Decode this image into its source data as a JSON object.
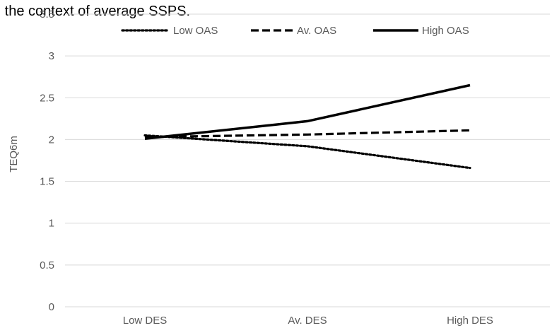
{
  "chart_data": {
    "type": "line",
    "title": "n the context of average SSPS.",
    "xlabel": "",
    "ylabel": "TEQ6m",
    "categories": [
      "Low DES",
      "Av. DES",
      "High DES"
    ],
    "ylim": [
      0,
      3.5
    ],
    "yticks": [
      0,
      0.5,
      1,
      1.5,
      2,
      2.5,
      3,
      3.5
    ],
    "ytick_labels": [
      "0",
      "0.5",
      "1",
      "1.5",
      "2",
      "2.5",
      "3",
      "3.5"
    ],
    "grid": true,
    "legend_position": "top",
    "series": [
      {
        "name": "Low OAS",
        "values": [
          2.05,
          1.92,
          1.66
        ],
        "style": "dotted",
        "color": "#000000"
      },
      {
        "name": "Av. OAS",
        "values": [
          2.03,
          2.06,
          2.11
        ],
        "style": "dashed",
        "color": "#000000"
      },
      {
        "name": "High OAS",
        "values": [
          2.01,
          2.22,
          2.65
        ],
        "style": "solid",
        "color": "#000000"
      }
    ],
    "gridline_color": "#d9d9d9"
  }
}
